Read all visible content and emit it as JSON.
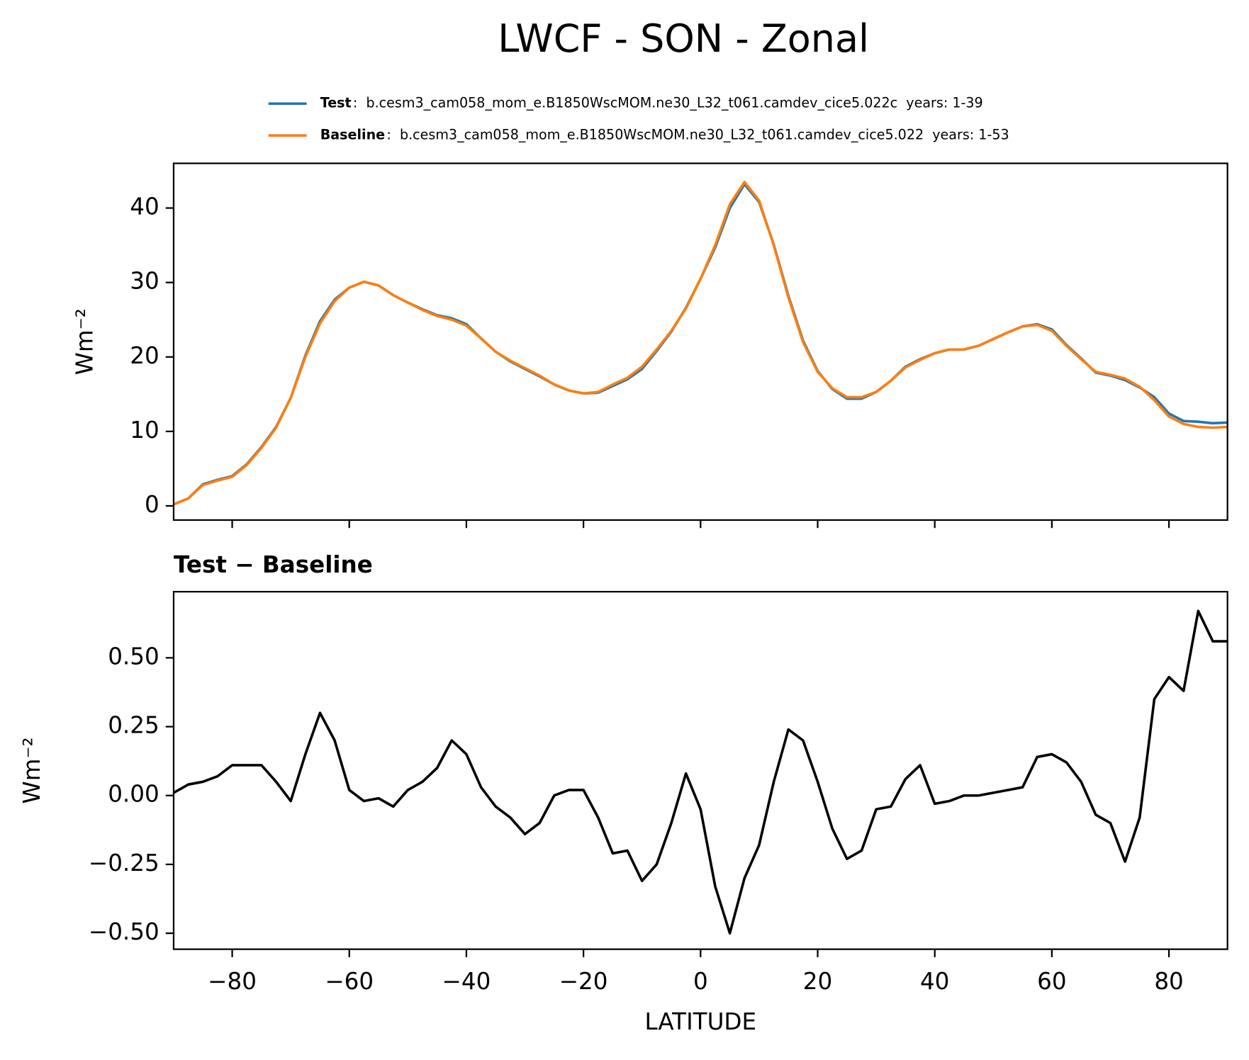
{
  "title": "LWCF - SON - Zonal",
  "chart_data": [
    {
      "type": "line",
      "ylabel": "Wm⁻²",
      "x": [
        -90,
        -87.5,
        -85,
        -82.5,
        -80,
        -77.5,
        -75,
        -72.5,
        -70,
        -67.5,
        -65,
        -62.5,
        -60,
        -57.5,
        -55,
        -52.5,
        -50,
        -47.5,
        -45,
        -42.5,
        -40,
        -37.5,
        -35,
        -32.5,
        -30,
        -27.5,
        -25,
        -22.5,
        -20,
        -17.5,
        -15,
        -12.5,
        -10,
        -7.5,
        -5,
        -2.5,
        0,
        2.5,
        5,
        7.5,
        10,
        12.5,
        15,
        17.5,
        20,
        22.5,
        25,
        27.5,
        30,
        32.5,
        35,
        37.5,
        40,
        42.5,
        45,
        47.5,
        50,
        52.5,
        55,
        57.5,
        60,
        62.5,
        65,
        67.5,
        70,
        72.5,
        75,
        77.5,
        80,
        82.5,
        85,
        87.5,
        90
      ],
      "series": [
        {
          "name": "Test",
          "description": ":  b.cesm3_cam058_mom_e.B1850WscMOM.ne30_L32_t061.camdev_cice5.022c  years: 1-39",
          "color": "#1f77b4",
          "values": [
            0.2,
            1.0,
            2.9,
            3.5,
            4.0,
            5.6,
            7.9,
            10.6,
            14.5,
            20.2,
            24.8,
            27.7,
            29.3,
            30.1,
            29.6,
            28.3,
            27.3,
            26.4,
            25.6,
            25.2,
            24.4,
            22.5,
            20.7,
            19.4,
            18.4,
            17.4,
            16.3,
            15.5,
            15.1,
            15.2,
            16.1,
            17.0,
            18.4,
            20.8,
            23.4,
            26.6,
            30.5,
            34.7,
            40.0,
            43.2,
            40.8,
            35.1,
            28.2,
            22.2,
            18.1,
            15.7,
            14.4,
            14.4,
            15.3,
            16.8,
            18.7,
            19.7,
            20.5,
            21.0,
            21.0,
            21.5,
            22.4,
            23.3,
            24.1,
            24.4,
            23.7,
            21.6,
            19.8,
            17.9,
            17.5,
            16.9,
            15.9,
            14.6,
            12.4,
            11.4,
            11.3,
            11.1,
            11.2
          ]
        },
        {
          "name": "Baseline",
          "description": ":  b.cesm3_cam058_mom_e.B1850WscMOM.ne30_L32_t061.camdev_cice5.022  years: 1-53",
          "color": "#ff7f0e",
          "values": [
            0.2,
            1.0,
            2.8,
            3.4,
            3.9,
            5.5,
            7.8,
            10.5,
            14.5,
            20,
            24.5,
            27.5,
            29.3,
            30.1,
            29.6,
            28.3,
            27.3,
            26.3,
            25.5,
            25.0,
            24.2,
            22.5,
            20.7,
            19.5,
            18.5,
            17.5,
            16.3,
            15.5,
            15.1,
            15.3,
            16.3,
            17.2,
            18.7,
            21,
            23.5,
            26.5,
            30.5,
            35,
            40.5,
            43.5,
            41,
            35,
            28,
            22,
            18,
            15.8,
            14.6,
            14.6,
            15.3,
            16.8,
            18.6,
            19.6,
            20.5,
            21.0,
            21.0,
            21.5,
            22.4,
            23.3,
            24.1,
            24.3,
            23.5,
            21.5,
            19.7,
            18.0,
            17.6,
            17.1,
            16.0,
            14.2,
            12,
            11.0,
            10.6,
            10.5,
            10.6
          ]
        }
      ],
      "xlim": [
        -90,
        90
      ],
      "xticks": [
        -80,
        -60,
        -40,
        -20,
        0,
        20,
        40,
        60,
        80
      ],
      "ylim": [
        -1.9,
        46
      ],
      "yticks": [
        0,
        10,
        20,
        30,
        40
      ]
    },
    {
      "type": "line",
      "title": "Test − Baseline",
      "xlabel": "LATITUDE",
      "ylabel": "Wm⁻²",
      "x": [
        -90,
        -87.5,
        -85,
        -82.5,
        -80,
        -77.5,
        -75,
        -72.5,
        -70,
        -67.5,
        -65,
        -62.5,
        -60,
        -57.5,
        -55,
        -52.5,
        -50,
        -47.5,
        -45,
        -42.5,
        -40,
        -37.5,
        -35,
        -32.5,
        -30,
        -27.5,
        -25,
        -22.5,
        -20,
        -17.5,
        -15,
        -12.5,
        -10,
        -7.5,
        -5,
        -2.5,
        0,
        2.5,
        5,
        7.5,
        10,
        12.5,
        15,
        17.5,
        20,
        22.5,
        25,
        27.5,
        30,
        32.5,
        35,
        37.5,
        40,
        42.5,
        45,
        47.5,
        50,
        52.5,
        55,
        57.5,
        60,
        62.5,
        65,
        67.5,
        70,
        72.5,
        75,
        77.5,
        80,
        82.5,
        85,
        87.5,
        90
      ],
      "series": [
        {
          "color": "#000000",
          "values": [
            0.01,
            0.04,
            0.05,
            0.07,
            0.11,
            0.11,
            0.11,
            0.05,
            -0.02,
            0.15,
            0.3,
            0.2,
            0.02,
            -0.02,
            -0.01,
            -0.04,
            0.02,
            0.05,
            0.1,
            0.2,
            0.15,
            0.03,
            -0.04,
            -0.08,
            -0.14,
            -0.1,
            0.0,
            0.02,
            0.02,
            -0.08,
            -0.21,
            -0.2,
            -0.31,
            -0.25,
            -0.1,
            0.08,
            -0.05,
            -0.33,
            -0.5,
            -0.3,
            -0.18,
            0.05,
            0.24,
            0.2,
            0.05,
            -0.12,
            -0.23,
            -0.2,
            -0.05,
            -0.04,
            0.06,
            0.11,
            -0.03,
            -0.02,
            0.0,
            0.0,
            0.01,
            0.02,
            0.03,
            0.14,
            0.15,
            0.12,
            0.05,
            -0.07,
            -0.1,
            -0.24,
            -0.08,
            0.35,
            0.43,
            0.38,
            0.67,
            0.56,
            0.56
          ]
        }
      ],
      "xlim": [
        -90,
        90
      ],
      "xticks": [
        {
          "value": -80,
          "label": "−80"
        },
        {
          "value": -60,
          "label": "−60"
        },
        {
          "value": -40,
          "label": "−40"
        },
        {
          "value": -20,
          "label": "−20"
        },
        0,
        20,
        40,
        60,
        80
      ],
      "ylim": [
        -0.558,
        0.74
      ],
      "yticks": [
        {
          "value": -0.5,
          "label": "−0.50"
        },
        {
          "value": -0.25,
          "label": "−0.25"
        },
        {
          "value": 0,
          "label": "0.00"
        },
        {
          "value": 0.25,
          "label": "0.25"
        },
        {
          "value": 0.5,
          "label": "0.50"
        }
      ]
    }
  ]
}
